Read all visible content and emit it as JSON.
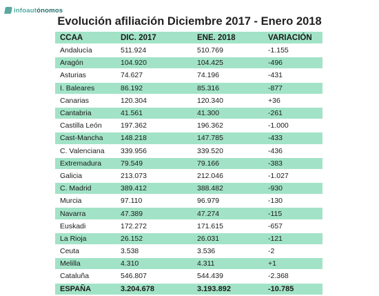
{
  "brand": {
    "name_a": "infoaut",
    "name_b": "ónomos",
    "tagline": ""
  },
  "title": "Evolución afiliación Diciembre 2017 - Enero 2018",
  "table": {
    "headers": [
      "CCAA",
      "DIC. 2017",
      "ENE. 2018",
      "VARIACIÓN"
    ],
    "rows": [
      [
        "Andalucía",
        "511.924",
        "510.769",
        "-1.155"
      ],
      [
        "Aragón",
        "104.920",
        "104.425",
        "-496"
      ],
      [
        "Asturias",
        "74.627",
        "74.196",
        "-431"
      ],
      [
        "I. Baleares",
        "86.192",
        "85.316",
        "-877"
      ],
      [
        "Canarias",
        "120.304",
        "120.340",
        "+36"
      ],
      [
        "Cantabria",
        "41.561",
        "41.300",
        "-261"
      ],
      [
        "Castilla León",
        "197.362",
        "196.362",
        "-1.000"
      ],
      [
        "Cast-Mancha",
        "148.218",
        "147.785",
        "-433"
      ],
      [
        "C. Valenciana",
        "339.956",
        "339.520",
        "-436"
      ],
      [
        "Extremadura",
        "79.549",
        "79.166",
        "-383"
      ],
      [
        "Galicia",
        "213.073",
        "212.046",
        "-1.027"
      ],
      [
        "C. Madrid",
        "389.412",
        "388.482",
        "-930"
      ],
      [
        "Murcia",
        "97.110",
        "96.979",
        "-130"
      ],
      [
        "Navarra",
        "47.389",
        "47.274",
        "-115"
      ],
      [
        "Euskadi",
        "172.272",
        "171.615",
        "-657"
      ],
      [
        "La Rioja",
        "26.152",
        "26.031",
        "-121"
      ],
      [
        "Ceuta",
        "3.538",
        "3.536",
        "-2"
      ],
      [
        "Melilla",
        "4.310",
        "4.311",
        "+1"
      ],
      [
        "Cataluña",
        "546.807",
        "544.439",
        "-2.368"
      ]
    ],
    "total": [
      "ESPAÑA",
      "3.204.678",
      "3.193.892",
      "-10.785"
    ]
  },
  "colors": {
    "row_green": "#a2e3c7",
    "brand_teal": "#4aa79d"
  }
}
